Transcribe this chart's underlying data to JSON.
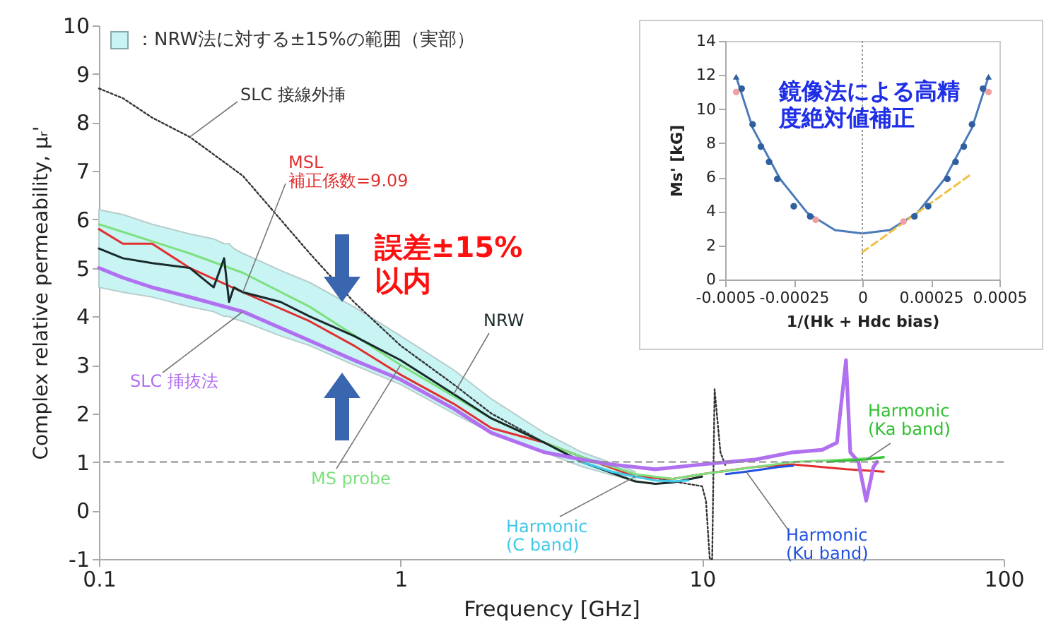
{
  "chart_data": [
    {
      "type": "line",
      "xlabel": "Frequency [GHz]",
      "ylabel": "Complex relative permeability, μᵣ'",
      "log": "x",
      "xlim": [
        0.1,
        100
      ],
      "xticks": [
        0.1,
        1,
        10,
        100
      ],
      "ylim": [
        -1,
        10
      ],
      "yticks": [
        -1,
        0,
        1,
        2,
        3,
        4,
        5,
        6,
        7,
        8,
        9,
        10
      ],
      "series": [
        {
          "name": "SLC 接線外挿",
          "color": "#333333",
          "line_style": "dotted",
          "x": [
            0.1,
            0.12,
            0.15,
            0.2,
            0.3,
            0.5,
            0.7,
            1,
            1.5,
            2,
            3,
            4,
            6,
            8,
            10,
            10.3,
            10.6,
            10.8,
            11,
            11.5,
            12
          ],
          "values": [
            8.7,
            8.5,
            8.1,
            7.7,
            6.9,
            5.3,
            4.3,
            3.4,
            2.6,
            2.0,
            1.4,
            1.1,
            0.75,
            0.6,
            0.5,
            0.2,
            -1,
            -1,
            2.5,
            1.2,
            0.9
          ]
        },
        {
          "name": "MSL\n補正係数=9.09",
          "color": "#e03030",
          "x": [
            0.1,
            0.12,
            0.15,
            0.2,
            0.3,
            0.5,
            0.7,
            1,
            1.5,
            2,
            3,
            4,
            6,
            8,
            10,
            15,
            20,
            30,
            40
          ],
          "values": [
            5.8,
            5.5,
            5.5,
            5.0,
            4.5,
            3.9,
            3.4,
            2.8,
            2.2,
            1.7,
            1.4,
            1.1,
            0.7,
            0.65,
            0.75,
            0.9,
            0.95,
            0.85,
            0.8
          ]
        },
        {
          "name": "MS probe",
          "color": "#7ee07e",
          "x": [
            0.1,
            0.2,
            0.3,
            0.5,
            1,
            2,
            3,
            4,
            6,
            8,
            10,
            20,
            30,
            40
          ],
          "values": [
            5.9,
            5.3,
            4.9,
            4.2,
            3.0,
            1.9,
            1.4,
            1.1,
            0.75,
            0.65,
            0.75,
            1.0,
            1.05,
            1.1
          ]
        },
        {
          "name": "NRW",
          "color": "#1a2a2a",
          "x": [
            0.1,
            0.12,
            0.15,
            0.2,
            0.24,
            0.26,
            0.27,
            0.28,
            0.3,
            0.4,
            0.5,
            0.7,
            1,
            1.5,
            2,
            3,
            4,
            6,
            7,
            8,
            10
          ],
          "values": [
            5.4,
            5.2,
            5.1,
            5.0,
            4.6,
            5.2,
            4.3,
            4.6,
            4.5,
            4.3,
            4.0,
            3.6,
            3.1,
            2.4,
            1.9,
            1.4,
            1.0,
            0.6,
            0.55,
            0.58,
            0.7
          ],
          "lower": [
            4.6,
            4.5,
            4.4,
            4.2,
            4.1,
            4.0,
            4.0,
            3.95,
            3.9,
            3.6,
            3.4,
            3.0,
            2.6,
            2.0,
            1.6,
            1.2,
            0.9,
            0.6,
            null,
            null,
            null
          ],
          "upper": [
            6.2,
            6.1,
            5.9,
            5.7,
            5.6,
            5.5,
            5.5,
            5.4,
            5.3,
            4.95,
            4.7,
            4.2,
            3.6,
            2.9,
            2.3,
            1.6,
            1.2,
            0.8,
            null,
            null,
            null
          ]
        },
        {
          "name": "SLC 挿抜法",
          "color": "#b070f0",
          "x": [
            0.1,
            0.12,
            0.15,
            0.2,
            0.3,
            0.5,
            0.7,
            1,
            1.5,
            2,
            3,
            4,
            5,
            7,
            10,
            15,
            20,
            25,
            28,
            30,
            31,
            33,
            35,
            37,
            38
          ],
          "values": [
            5.0,
            4.8,
            4.6,
            4.4,
            4.1,
            3.5,
            3.1,
            2.7,
            2.1,
            1.6,
            1.2,
            1.05,
            0.95,
            0.85,
            0.95,
            1.05,
            1.2,
            1.25,
            1.4,
            3.1,
            1.2,
            1.0,
            0.2,
            0.9,
            1.0
          ]
        },
        {
          "name": "Harmonic\n(C band)",
          "color": "#40c8e8",
          "x": [
            4,
            5,
            6,
            7,
            8,
            9
          ],
          "values": [
            1.0,
            0.8,
            0.7,
            0.62,
            0.6,
            0.62
          ]
        },
        {
          "name": "Harmonic\n(Ku band)",
          "color": "#2050e0",
          "x": [
            12,
            14,
            16,
            18,
            20
          ],
          "values": [
            0.75,
            0.8,
            0.85,
            0.9,
            0.92
          ]
        },
        {
          "name": "Harmonic\n(Ka band)",
          "color": "#30c030",
          "x": [
            26,
            30,
            35,
            40
          ],
          "values": [
            1.0,
            1.03,
            1.05,
            1.1
          ]
        }
      ],
      "ref_lines": [
        {
          "axis": "y",
          "value": 1,
          "color": "#888888",
          "line_style": "dashed"
        }
      ],
      "annotations": [
        "：NRW法に対する±15%の範囲（実部）",
        "誤差±15%以内"
      ]
    },
    {
      "type": "scatter",
      "xlabel": "1/(Hk + Hdc bias)",
      "ylabel": "Ms' [kG]",
      "xlim": [
        -0.0005,
        0.0005
      ],
      "xticks": [
        -0.0005,
        -0.00025,
        0,
        0.00025,
        0.0005
      ],
      "ylim": [
        0,
        14
      ],
      "yticks": [
        0,
        2,
        4,
        6,
        8,
        10,
        12,
        14
      ],
      "series": [
        {
          "type": "line",
          "color": "#4a7ab8",
          "x": [
            -0.00046,
            -0.0004,
            -0.0003,
            -0.0002,
            -0.0001,
            0,
            0.0001,
            0.0002,
            0.0003,
            0.0004,
            0.00046
          ],
          "values": [
            11.9,
            8.9,
            5.9,
            3.9,
            2.9,
            2.7,
            2.9,
            3.9,
            5.9,
            8.9,
            11.9
          ]
        },
        {
          "type": "line",
          "color": "#f0c040",
          "line_style": "dashed",
          "x": [
            0,
            0.00039
          ],
          "values": [
            1.6,
            6.1
          ]
        },
        {
          "color": "#f0a0a0",
          "marker": "circle",
          "x": [
            -0.00046,
            -0.00017,
            0.00015,
            0.00046
          ],
          "values": [
            11.0,
            3.5,
            3.4,
            11.0
          ]
        },
        {
          "color": "#2f5f9f",
          "marker": "circle",
          "x": [
            -0.00044,
            -0.0004,
            -0.00037,
            -0.00034,
            -0.00031,
            -0.00025,
            -0.00019,
            0.00019,
            0.00024,
            0.00031,
            0.00034,
            0.00037,
            0.0004,
            0.00044
          ],
          "values": [
            11.2,
            9.1,
            7.8,
            6.9,
            5.9,
            4.3,
            3.7,
            3.7,
            4.3,
            5.9,
            6.9,
            7.8,
            9.1,
            11.2
          ]
        },
        {
          "color": "#2f5f9f",
          "marker": "triangle",
          "x": [
            -0.00046,
            0.00046
          ],
          "values": [
            11.9,
            11.9
          ]
        }
      ],
      "ref_lines": [
        {
          "axis": "x",
          "value": 0,
          "color": "#999999",
          "line_style": "dotted"
        }
      ],
      "annotations": [
        "鏡像法による高精度絶対値補正"
      ]
    }
  ]
}
